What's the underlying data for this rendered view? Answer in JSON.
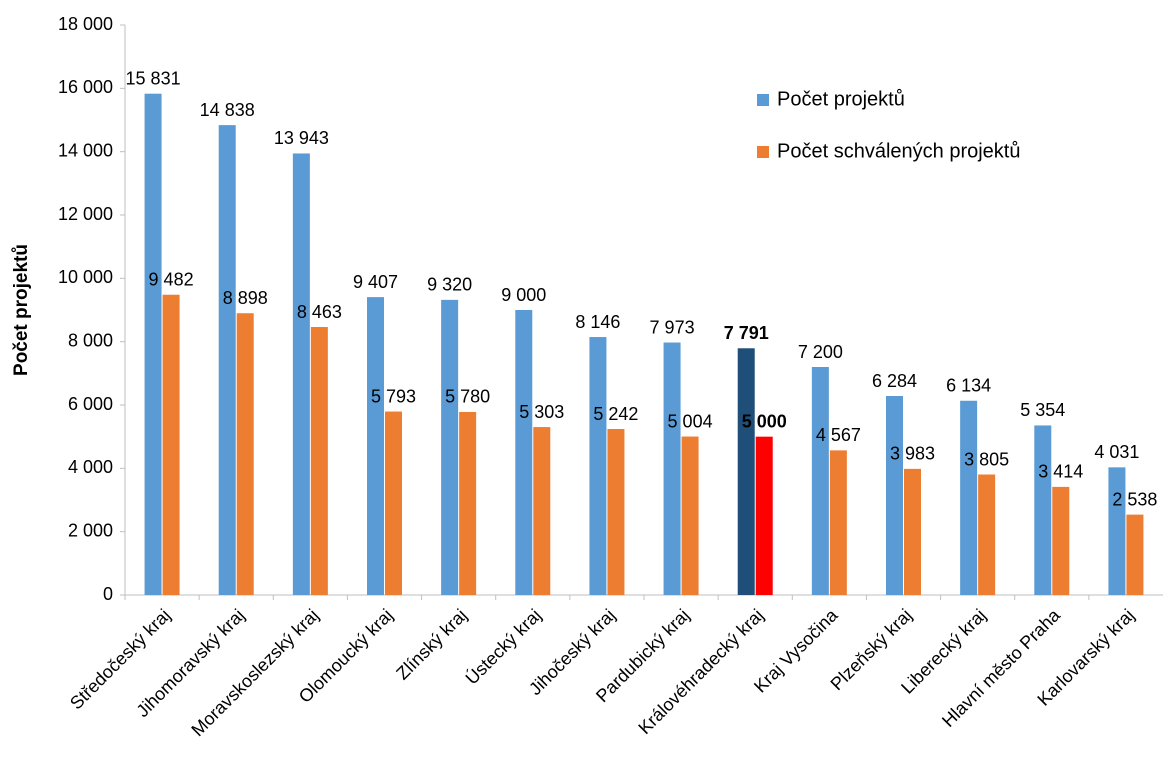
{
  "chart_data": {
    "type": "bar",
    "ylabel": "Počet projektů",
    "categories": [
      "Středočeský kraj",
      "Jihomoravský kraj",
      "Moravskoslezský kraj",
      "Olomoucký kraj",
      "Zlínský kraj",
      "Ústecký kraj",
      "Jihočeský kraj",
      "Pardubický kraj",
      "Královéhradecký kraj",
      "Kraj Vysočina",
      "Plzeňský kraj",
      "Liberecký kraj",
      "Hlavní město Praha",
      "Karlovarský kraj"
    ],
    "series": [
      {
        "name": "Počet projektů",
        "color": "#5b9bd5",
        "colors": [
          "#5b9bd5",
          "#5b9bd5",
          "#5b9bd5",
          "#5b9bd5",
          "#5b9bd5",
          "#5b9bd5",
          "#5b9bd5",
          "#5b9bd5",
          "#1f4e79",
          "#5b9bd5",
          "#5b9bd5",
          "#5b9bd5",
          "#5b9bd5",
          "#5b9bd5"
        ],
        "values": [
          15831,
          14838,
          13943,
          9407,
          9320,
          9000,
          8146,
          7973,
          7791,
          7200,
          6284,
          6134,
          5354,
          4031
        ],
        "value_labels": [
          "15 831",
          "14 838",
          "13 943",
          "9 407",
          "9 320",
          "9 000",
          "8 146",
          "7 973",
          "7 791",
          "7 200",
          "6 284",
          "6 134",
          "5 354",
          "4 031"
        ]
      },
      {
        "name": "Počet schválených projektů",
        "color": "#ed7d31",
        "colors": [
          "#ed7d31",
          "#ed7d31",
          "#ed7d31",
          "#ed7d31",
          "#ed7d31",
          "#ed7d31",
          "#ed7d31",
          "#ed7d31",
          "#ff0000",
          "#ed7d31",
          "#ed7d31",
          "#ed7d31",
          "#ed7d31",
          "#ed7d31"
        ],
        "values": [
          9482,
          8898,
          8463,
          5793,
          5780,
          5303,
          5242,
          5004,
          5000,
          4567,
          3983,
          3805,
          3414,
          2538
        ],
        "value_labels": [
          "9 482",
          "8 898",
          "8 463",
          "5 793",
          "5 780",
          "5 303",
          "5 242",
          "5 004",
          "5 000",
          "4 567",
          "3 983",
          "3 805",
          "3 414",
          "2 538"
        ]
      }
    ],
    "ylim": [
      0,
      18000
    ],
    "yticks": [
      0,
      {
        "value": 2000,
        "label": "2 000"
      },
      {
        "value": 4000,
        "label": "4 000"
      },
      {
        "value": 6000,
        "label": "6 000"
      },
      {
        "value": 8000,
        "label": "8 000"
      },
      {
        "value": 10000,
        "label": "10 000"
      },
      {
        "value": 12000,
        "label": "12 000"
      },
      {
        "value": 14000,
        "label": "14 000"
      },
      {
        "value": 16000,
        "label": "16 000"
      },
      {
        "value": 18000,
        "label": "18 000"
      }
    ],
    "grid": false,
    "legend": "upper right"
  }
}
